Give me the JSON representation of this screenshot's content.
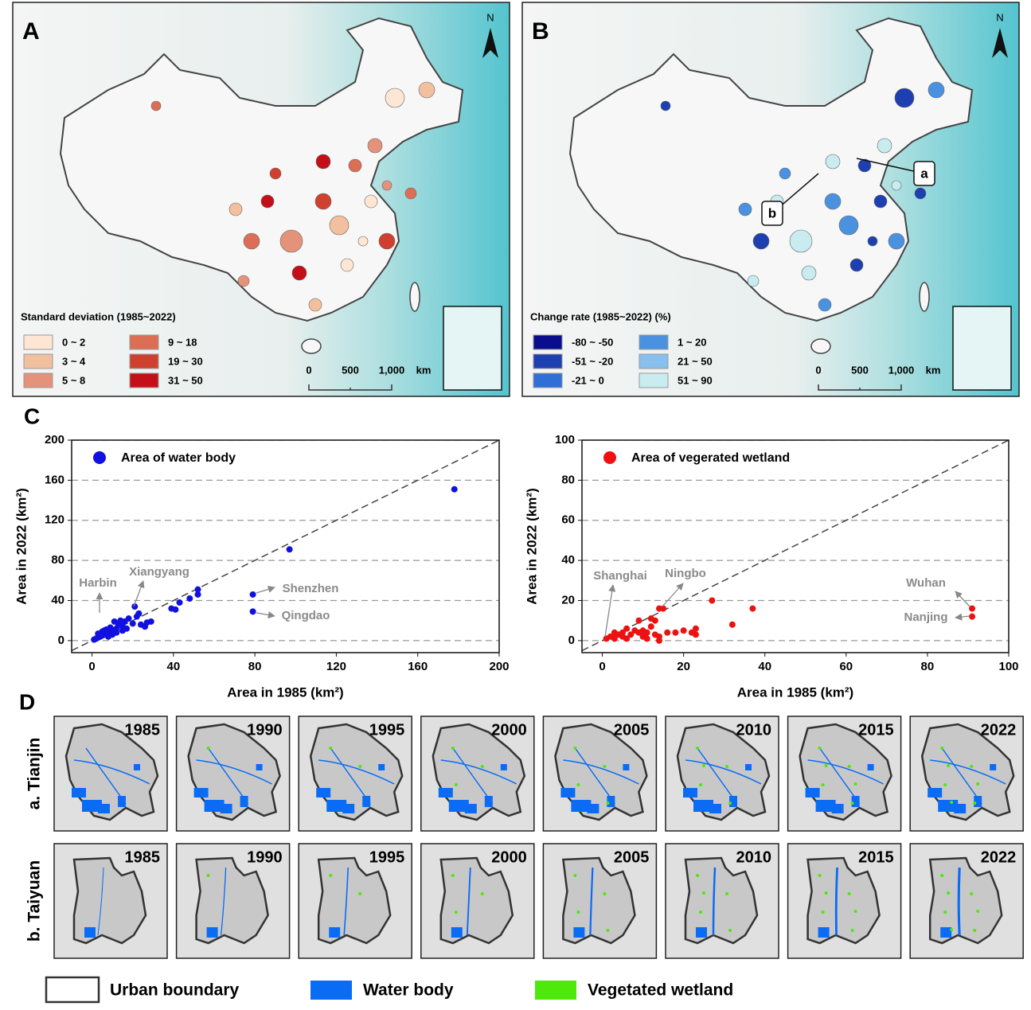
{
  "chart_data": [
    {
      "type": "scatter",
      "xlabel": "Area in 1985 (km²)",
      "ylabel": "Area in 2022 (km²)",
      "xlim": [
        -10,
        200
      ],
      "ylim": [
        -12,
        200
      ],
      "xticks": [
        0,
        40,
        80,
        120,
        160,
        200
      ],
      "yticks": [
        0,
        40,
        80,
        120,
        160,
        200
      ],
      "grid": true,
      "series": [
        {
          "name": "Area of water body",
          "color": "#1010e0",
          "x": [
            178,
            97,
            79,
            79,
            52,
            52,
            48,
            43,
            41,
            39,
            29,
            27,
            23,
            22,
            21,
            20,
            18,
            16,
            15,
            14,
            13,
            12,
            11,
            10,
            9,
            8,
            7,
            6,
            5,
            4,
            3,
            2,
            1,
            3,
            5,
            6,
            8,
            10,
            12,
            15,
            17,
            24,
            26
          ],
          "values": [
            151,
            91,
            46,
            29,
            51,
            46,
            42,
            38,
            31,
            32,
            19,
            18,
            27,
            24,
            34,
            17,
            22,
            19,
            14,
            20,
            16,
            12,
            19,
            10,
            13,
            8,
            11,
            6,
            9,
            4,
            7,
            2,
            1,
            3,
            5,
            10,
            4,
            6,
            8,
            10,
            12,
            16,
            14
          ]
        }
      ],
      "annotations": [
        "Harbin",
        "Xiangyang",
        "Shenzhen",
        "Qingdao"
      ]
    },
    {
      "type": "scatter",
      "xlabel": "Area in 1985 (km²)",
      "ylabel": "Area in 2022 (km²)",
      "xlim": [
        -5,
        100
      ],
      "ylim": [
        -6,
        100
      ],
      "xticks": [
        0,
        20,
        40,
        60,
        80,
        100
      ],
      "yticks": [
        0,
        20,
        40,
        60,
        80,
        100
      ],
      "grid": true,
      "series": [
        {
          "name": "Area of vegerated wetland",
          "color": "#ee1111",
          "x": [
            91,
            91,
            37,
            32,
            27,
            23,
            23,
            22,
            20,
            18,
            16,
            15,
            14,
            14,
            13,
            12,
            12,
            11,
            10,
            10,
            9,
            8,
            7,
            6,
            5,
            4,
            3,
            2,
            1,
            3,
            5,
            6,
            9,
            11,
            13,
            14
          ],
          "values": [
            16,
            12,
            16,
            8,
            20,
            6,
            3,
            4,
            5,
            4,
            4,
            16,
            16,
            0,
            10,
            11,
            7,
            4,
            2,
            5,
            4,
            5,
            3,
            6,
            4,
            3,
            4,
            2,
            1,
            1,
            2,
            1,
            10,
            1,
            3,
            2
          ]
        }
      ],
      "annotations": [
        "Shanghai",
        "Ningbo",
        "Wuhan",
        "Nanjing"
      ]
    }
  ],
  "maps": [
    {
      "label": "A",
      "north": "N",
      "legend_title": "Standard deviation (1985~2022)",
      "legend": [
        {
          "label": "0 ~ 2",
          "color": "#fde6d4"
        },
        {
          "label": "3 ~ 4",
          "color": "#f2bf9f"
        },
        {
          "label": "5 ~ 8",
          "color": "#e4937a"
        },
        {
          "label": "9 ~ 18",
          "color": "#dc6e56"
        },
        {
          "label": "19 ~ 30",
          "color": "#d0402e"
        },
        {
          "label": "31 ~ 50",
          "color": "#c40f18"
        }
      ],
      "scale": [
        "0",
        "500",
        "1,000",
        "km"
      ]
    },
    {
      "label": "B",
      "north": "N",
      "legend_title": "Change rate (1985~2022) (%)",
      "legend": [
        {
          "label": "-80 ~ -50",
          "color": "#0a0d8c"
        },
        {
          "label": "-51 ~ -20",
          "color": "#1e3fb0"
        },
        {
          "label": "-21 ~  0",
          "color": "#2f6fd6"
        },
        {
          "label": "1 ~ 20",
          "color": "#4a92e0"
        },
        {
          "label": "21 ~ 50",
          "color": "#87bfee"
        },
        {
          "label": "51 ~ 90",
          "color": "#c8ecf0"
        }
      ],
      "scale": [
        "0",
        "500",
        "1,000",
        "km"
      ],
      "callouts": [
        "a",
        "b"
      ]
    }
  ],
  "panel_c_label": "C",
  "panel_d": {
    "label": "D",
    "years": [
      "1985",
      "1990",
      "1995",
      "2000",
      "2005",
      "2010",
      "2015",
      "2022"
    ],
    "rows": [
      "a. Tianjin",
      "b. Taiyuan"
    ]
  },
  "legend": [
    {
      "label": "Urban boundary"
    },
    {
      "label": "Water body",
      "color": "#0a6cf5"
    },
    {
      "label": "Vegetated wetland",
      "color": "#4ee80a"
    }
  ]
}
